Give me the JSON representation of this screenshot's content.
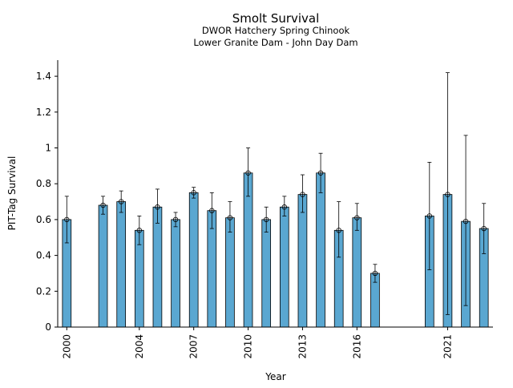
{
  "chart_data": {
    "type": "bar",
    "title": "Smolt Survival",
    "subtitle": "DWOR Hatchery Spring Chinook",
    "subtitle2": "Lower Granite Dam - John Day Dam",
    "xlabel": "Year",
    "ylabel": "PIT-Tag Survival",
    "xlim": [
      1999.5,
      2023.5
    ],
    "ylim": [
      0,
      1.49
    ],
    "yticks": [
      0,
      0.2,
      0.4,
      0.6,
      0.8,
      1.0,
      1.2,
      1.4
    ],
    "ytick_labels": [
      "0",
      "0.2",
      "0.4",
      "0.6",
      "0.8",
      "1",
      "1.2",
      "1.4"
    ],
    "xticks": [
      2000,
      2004,
      2007,
      2010,
      2013,
      2016,
      2021
    ],
    "xtick_labels": [
      "2000",
      "2004",
      "2007",
      "2010",
      "2013",
      "2016",
      "2021"
    ],
    "bar_color": "#5aa7d1",
    "grid": false,
    "series": [
      {
        "x": [
          2000,
          2002,
          2003,
          2004,
          2005,
          2006,
          2007,
          2008,
          2009,
          2010,
          2011,
          2012,
          2013,
          2014,
          2015,
          2016,
          2017,
          2020,
          2021,
          2022,
          2023
        ],
        "values": [
          0.6,
          0.68,
          0.7,
          0.54,
          0.67,
          0.6,
          0.75,
          0.65,
          0.61,
          0.86,
          0.6,
          0.67,
          0.74,
          0.86,
          0.54,
          0.61,
          0.3,
          0.62,
          0.74,
          0.59,
          0.55
        ],
        "lower": [
          0.47,
          0.63,
          0.64,
          0.46,
          0.58,
          0.56,
          0.72,
          0.55,
          0.53,
          0.73,
          0.53,
          0.62,
          0.64,
          0.75,
          0.39,
          0.54,
          0.25,
          0.32,
          0.07,
          0.12,
          0.41
        ],
        "upper": [
          0.73,
          0.73,
          0.76,
          0.62,
          0.77,
          0.64,
          0.78,
          0.75,
          0.7,
          1.0,
          0.67,
          0.73,
          0.85,
          0.97,
          0.7,
          0.69,
          0.35,
          0.92,
          1.42,
          1.07,
          0.69
        ]
      }
    ]
  }
}
